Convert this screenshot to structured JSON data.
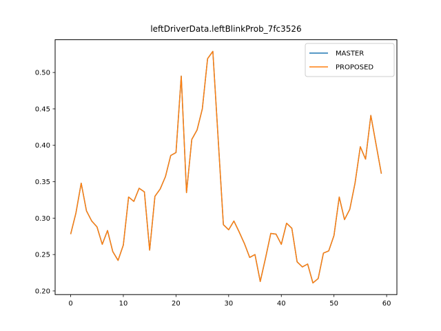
{
  "figure": {
    "title": "leftDriverData.leftBlinkProb_7fc3526",
    "background": "#ffffff"
  },
  "legend": {
    "position": "upper right",
    "entries": [
      {
        "label": "MASTER",
        "color": "#1f77b4"
      },
      {
        "label": "PROPOSED",
        "color": "#ff7f0e"
      }
    ]
  },
  "chart_data": {
    "type": "line",
    "title": "leftDriverData.leftBlinkProb_7fc3526",
    "xlabel": "",
    "ylabel": "",
    "grid": false,
    "legend_position": "upper right",
    "xlim": [
      -2.95,
      61.95
    ],
    "ylim": [
      0.195,
      0.545
    ],
    "xticks": [
      0,
      10,
      20,
      30,
      40,
      50,
      60
    ],
    "yticks": [
      "0.20",
      "0.25",
      "0.30",
      "0.35",
      "0.40",
      "0.45",
      "0.50"
    ],
    "x": [
      0,
      1,
      2,
      3,
      4,
      5,
      6,
      7,
      8,
      9,
      10,
      11,
      12,
      13,
      14,
      15,
      16,
      17,
      18,
      19,
      20,
      21,
      22,
      23,
      24,
      25,
      26,
      27,
      28,
      29,
      30,
      31,
      32,
      33,
      34,
      35,
      36,
      37,
      38,
      39,
      40,
      41,
      42,
      43,
      44,
      45,
      46,
      47,
      48,
      49,
      50,
      51,
      52,
      53,
      54,
      55,
      56,
      57,
      58,
      59
    ],
    "series": [
      {
        "name": "MASTER",
        "color": "#1f77b4",
        "values": [
          0.278,
          0.307,
          0.348,
          0.31,
          0.296,
          0.288,
          0.264,
          0.283,
          0.254,
          0.242,
          0.263,
          0.329,
          0.323,
          0.341,
          0.336,
          0.256,
          0.33,
          0.34,
          0.357,
          0.386,
          0.39,
          0.495,
          0.335,
          0.408,
          0.421,
          0.45,
          0.519,
          0.529,
          0.41,
          0.291,
          0.284,
          0.296,
          0.281,
          0.265,
          0.246,
          0.25,
          0.213,
          0.245,
          0.279,
          0.278,
          0.264,
          0.293,
          0.286,
          0.24,
          0.233,
          0.237,
          0.211,
          0.217,
          0.252,
          0.255,
          0.276,
          0.329,
          0.298,
          0.312,
          0.348,
          0.398,
          0.381,
          0.441,
          0.401,
          0.361
        ]
      },
      {
        "name": "PROPOSED",
        "color": "#ff7f0e",
        "values": [
          0.278,
          0.307,
          0.348,
          0.31,
          0.296,
          0.288,
          0.264,
          0.283,
          0.254,
          0.242,
          0.263,
          0.329,
          0.323,
          0.341,
          0.336,
          0.256,
          0.33,
          0.34,
          0.357,
          0.386,
          0.39,
          0.495,
          0.335,
          0.408,
          0.421,
          0.45,
          0.519,
          0.529,
          0.41,
          0.291,
          0.284,
          0.296,
          0.281,
          0.265,
          0.246,
          0.25,
          0.213,
          0.245,
          0.279,
          0.278,
          0.264,
          0.293,
          0.286,
          0.24,
          0.233,
          0.237,
          0.211,
          0.217,
          0.252,
          0.255,
          0.276,
          0.329,
          0.298,
          0.312,
          0.348,
          0.398,
          0.381,
          0.441,
          0.401,
          0.361
        ]
      }
    ],
    "note": "MASTER and PROPOSED series overlap exactly; orange PROPOSED line is drawn on top"
  }
}
